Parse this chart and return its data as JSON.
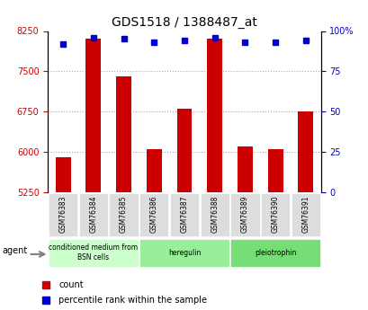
{
  "title": "GDS1518 / 1388487_at",
  "samples": [
    "GSM76383",
    "GSM76384",
    "GSM76385",
    "GSM76386",
    "GSM76387",
    "GSM76388",
    "GSM76389",
    "GSM76390",
    "GSM76391"
  ],
  "counts": [
    5900,
    8100,
    7400,
    6050,
    6800,
    8100,
    6100,
    6050,
    6750
  ],
  "percentiles": [
    92,
    96,
    95,
    93,
    94,
    96,
    93,
    93,
    94
  ],
  "ylim_left": [
    5250,
    8250
  ],
  "ylim_right": [
    0,
    100
  ],
  "yticks_left": [
    5250,
    6000,
    6750,
    7500,
    8250
  ],
  "yticks_right": [
    0,
    25,
    50,
    75,
    100
  ],
  "ytick_labels_left": [
    "5250",
    "6000",
    "6750",
    "7500",
    "8250"
  ],
  "ytick_labels_right": [
    "0",
    "25",
    "50",
    "75",
    "100%"
  ],
  "bar_color": "#cc0000",
  "dot_color": "#0000cc",
  "groups": [
    {
      "label": "conditioned medium from\nBSN cells",
      "start": 0,
      "end": 3,
      "color": "#ccffcc"
    },
    {
      "label": "heregulin",
      "start": 3,
      "end": 6,
      "color": "#99ee99"
    },
    {
      "label": "pleiotrophin",
      "start": 6,
      "end": 9,
      "color": "#77dd77"
    }
  ],
  "legend_count_label": "count",
  "legend_pct_label": "percentile rank within the sample",
  "agent_label": "agent",
  "grid_color": "#aaaaaa",
  "bg_color": "#ffffff",
  "plot_bg_color": "#ffffff",
  "tick_label_color_left": "#cc0000",
  "tick_label_color_right": "#0000cc"
}
